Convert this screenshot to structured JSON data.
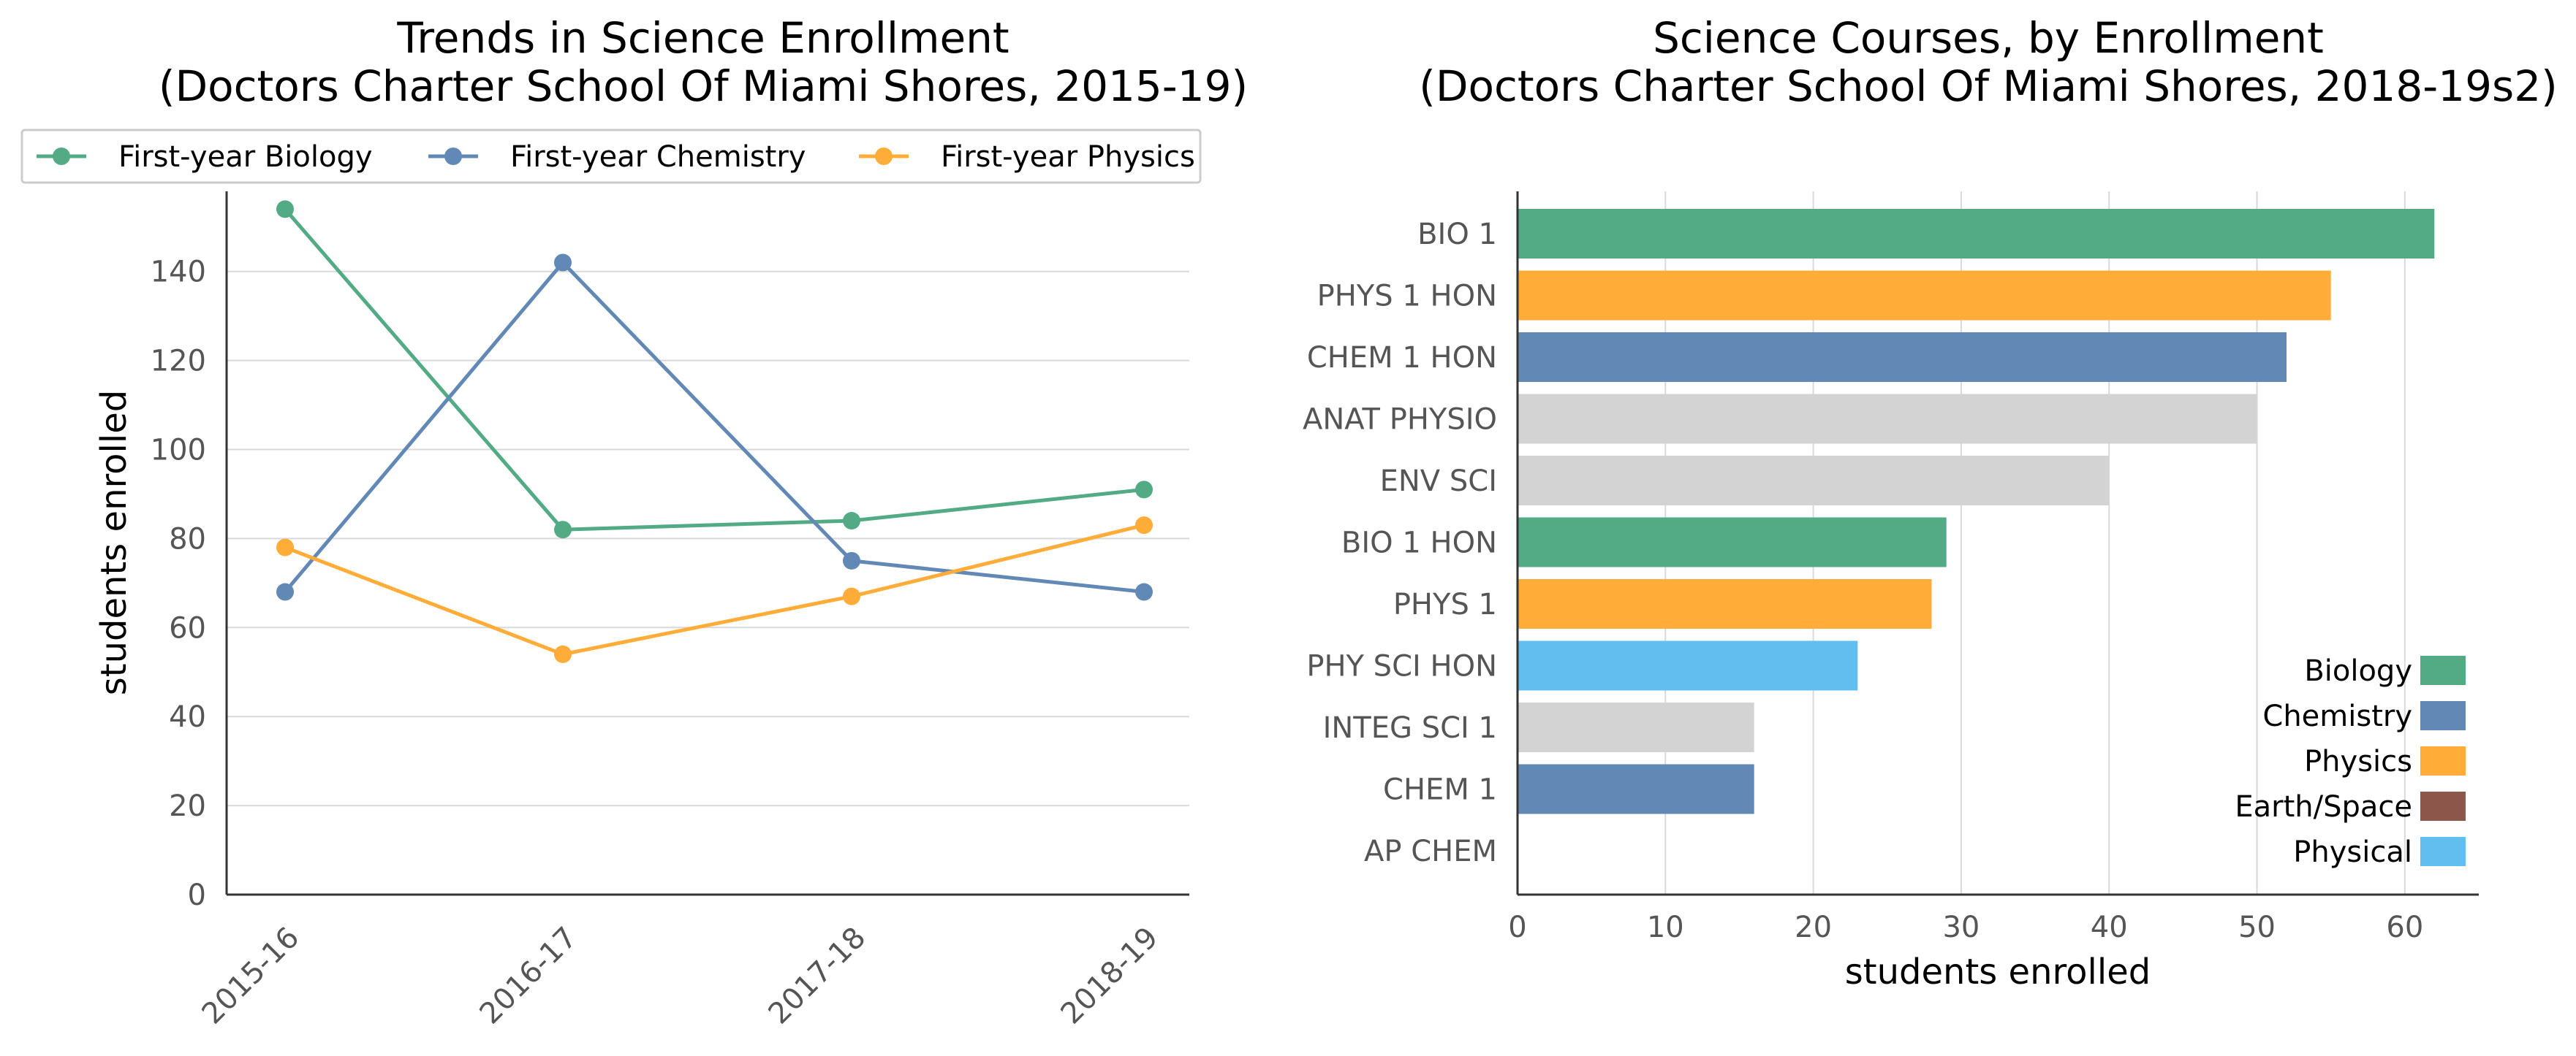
{
  "chart_data": [
    {
      "type": "line",
      "title": [
        "Trends in Science Enrollment",
        "(Doctors Charter School Of Miami Shores, 2015-19)"
      ],
      "xlabel": "",
      "ylabel": "students enrolled",
      "categories": [
        "2015-16",
        "2016-17",
        "2017-18",
        "2018-19"
      ],
      "series": [
        {
          "name": "First-year Biology",
          "color": "#52AB85",
          "values": [
            154,
            82,
            84,
            91
          ]
        },
        {
          "name": "First-year Chemistry",
          "color": "#6289B6",
          "values": [
            68,
            142,
            75,
            68
          ]
        },
        {
          "name": "First-year Physics",
          "color": "#FFAC38",
          "values": [
            78,
            54,
            67,
            83
          ]
        }
      ],
      "yticks": [
        0,
        20,
        40,
        60,
        80,
        100,
        120,
        140
      ],
      "ylim": [
        0,
        158
      ],
      "grid": "horizontal",
      "legend": "top"
    },
    {
      "type": "bar",
      "orientation": "horizontal",
      "title": [
        "Science Courses, by Enrollment",
        "(Doctors Charter School Of Miami Shores, 2018-19s2)"
      ],
      "xlabel": "students enrolled",
      "ylabel": "",
      "categories": [
        "BIO 1",
        "PHYS 1 HON",
        "CHEM 1 HON",
        "ANAT PHYSIO",
        "ENV SCI",
        "BIO 1 HON",
        "PHYS 1",
        "PHY SCI HON",
        "INTEG SCI 1",
        "CHEM 1",
        "AP CHEM"
      ],
      "values": [
        62,
        55,
        52,
        50,
        40,
        29,
        28,
        23,
        16,
        16,
        0
      ],
      "bar_colors": [
        "#52AB85",
        "#FFAC38",
        "#6289B6",
        "#D3D3D3",
        "#D3D3D3",
        "#52AB85",
        "#FFAC38",
        "#62BEEE",
        "#D3D3D3",
        "#6289B6",
        "#6289B6"
      ],
      "xticks": [
        0,
        10,
        20,
        30,
        40,
        50,
        60
      ],
      "xlim": [
        0,
        65
      ],
      "grid": "vertical",
      "legend": "bottom-right",
      "legend_entries": [
        {
          "name": "Biology",
          "color": "#52AB85"
        },
        {
          "name": "Chemistry",
          "color": "#6289B6"
        },
        {
          "name": "Physics",
          "color": "#FFAC38"
        },
        {
          "name": "Earth/Space",
          "color": "#8C564B"
        },
        {
          "name": "Physical",
          "color": "#62BEEE"
        }
      ]
    }
  ]
}
